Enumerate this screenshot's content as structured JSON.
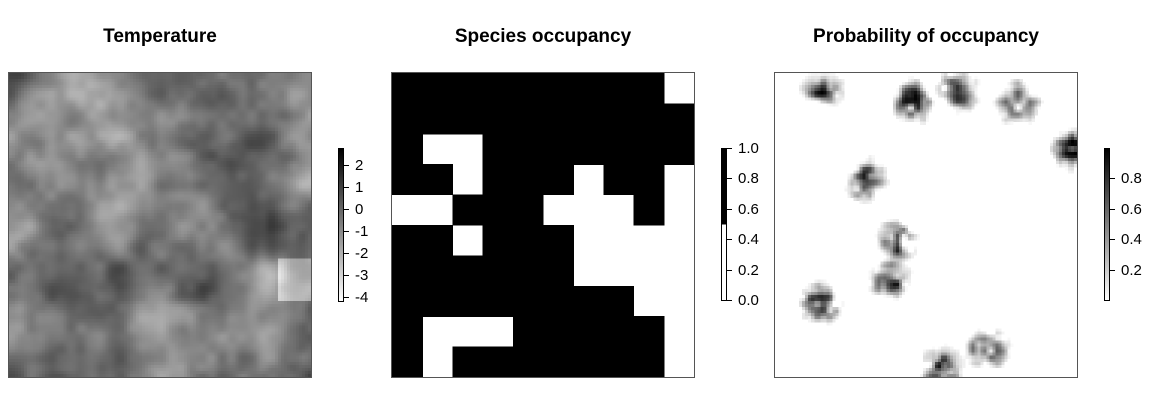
{
  "chart_data": [
    {
      "type": "heatmap",
      "title": "Temperature",
      "legend": {
        "placement": "right",
        "colormap": "grayscale",
        "color_low": "#ffffff",
        "color_high": "#000000",
        "range": [
          -4.2,
          2.8
        ],
        "ticks": [
          {
            "value": 2,
            "label": "2"
          },
          {
            "value": 1,
            "label": "1"
          },
          {
            "value": 0,
            "label": "0"
          },
          {
            "value": -1,
            "label": "-1"
          },
          {
            "value": -2,
            "label": "-2"
          },
          {
            "value": -3,
            "label": "-3"
          },
          {
            "value": -4,
            "label": "-4"
          }
        ]
      }
    },
    {
      "type": "heatmap",
      "title": "Species occupancy",
      "grid": {
        "rows": 10,
        "cols": 10,
        "values": [
          [
            1,
            1,
            1,
            1,
            1,
            1,
            1,
            1,
            1,
            0
          ],
          [
            1,
            1,
            1,
            1,
            1,
            1,
            1,
            1,
            1,
            1
          ],
          [
            1,
            0,
            0,
            1,
            1,
            1,
            1,
            1,
            1,
            1
          ],
          [
            1,
            1,
            0,
            1,
            1,
            1,
            0,
            1,
            1,
            0
          ],
          [
            0,
            0,
            1,
            1,
            1,
            0,
            0,
            0,
            1,
            0
          ],
          [
            1,
            1,
            0,
            1,
            1,
            1,
            0,
            0,
            0,
            0
          ],
          [
            1,
            1,
            1,
            1,
            1,
            1,
            0,
            0,
            0,
            0
          ],
          [
            1,
            1,
            1,
            1,
            1,
            1,
            1,
            1,
            0,
            0
          ],
          [
            1,
            0,
            0,
            0,
            1,
            1,
            1,
            1,
            1,
            0
          ],
          [
            1,
            0,
            1,
            1,
            1,
            1,
            1,
            1,
            1,
            0
          ]
        ]
      },
      "legend": {
        "placement": "right",
        "colormap": "binary",
        "color_low": "#ffffff",
        "color_high": "#000000",
        "range": [
          0,
          1
        ],
        "ticks": [
          {
            "value": 1.0,
            "label": "1.0"
          },
          {
            "value": 0.8,
            "label": "0.8"
          },
          {
            "value": 0.6,
            "label": "0.6"
          },
          {
            "value": 0.4,
            "label": "0.4"
          },
          {
            "value": 0.2,
            "label": "0.2"
          },
          {
            "value": 0.0,
            "label": "0.0"
          }
        ]
      }
    },
    {
      "type": "heatmap",
      "title": "Probability of occupancy",
      "legend": {
        "placement": "right",
        "colormap": "grayscale",
        "color_low": "#ffffff",
        "color_high": "#000000",
        "range": [
          0,
          1
        ],
        "ticks": [
          {
            "value": 0.8,
            "label": "0.8"
          },
          {
            "value": 0.6,
            "label": "0.6"
          },
          {
            "value": 0.4,
            "label": "0.4"
          },
          {
            "value": 0.2,
            "label": "0.2"
          }
        ]
      }
    }
  ]
}
